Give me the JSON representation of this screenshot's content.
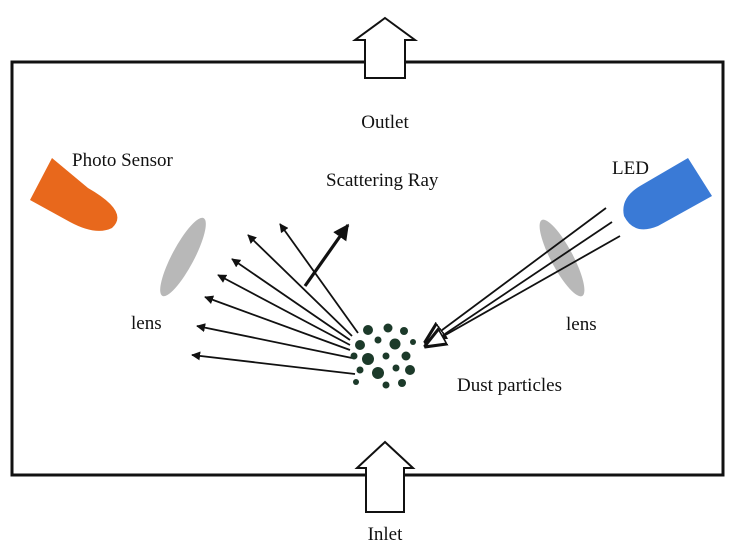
{
  "labels": {
    "outlet": "Outlet",
    "inlet": "Inlet",
    "photo_sensor": "Photo Sensor",
    "led": "LED",
    "scattering_ray": "Scattering Ray",
    "lens_left": "lens",
    "lens_right": "lens",
    "dust_particles": "Dust particles"
  },
  "colors": {
    "chamber": "#111111",
    "photo_sensor": "#e8681c",
    "led": "#3a7ad6",
    "lens": "#b8b8b8",
    "particle": "#1c3a2a",
    "arrow_fill": "#ffffff"
  }
}
